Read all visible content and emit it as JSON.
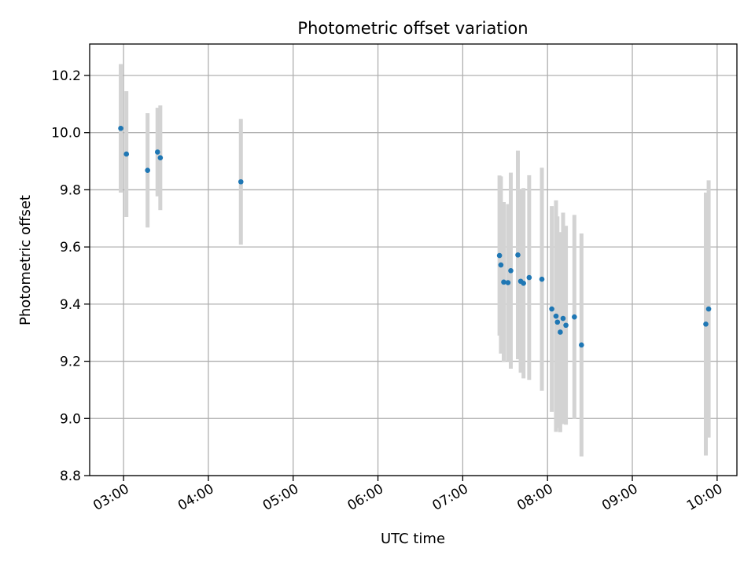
{
  "chart_data": {
    "type": "scatter",
    "title": "Photometric offset variation",
    "xlabel": "UTC time",
    "ylabel": "Photometric offset",
    "x_ticks": [
      "03:00",
      "04:00",
      "05:00",
      "06:00",
      "07:00",
      "08:00",
      "09:00",
      "10:00"
    ],
    "y_ticks": [
      "8.8",
      "9.0",
      "9.2",
      "9.4",
      "9.6",
      "9.8",
      "10.0",
      "10.2"
    ],
    "xlim": [
      "02:36",
      "10:14"
    ],
    "ylim": [
      8.8,
      10.31
    ],
    "grid": true,
    "point_color": "#1f77b4",
    "errorbar_color": "#d3d3d3",
    "points": [
      {
        "time": "02:58",
        "y": 10.015,
        "err": 0.225
      },
      {
        "time": "03:02",
        "y": 9.925,
        "err": 0.22
      },
      {
        "time": "03:17",
        "y": 9.868,
        "err": 0.2
      },
      {
        "time": "03:24",
        "y": 9.932,
        "err": 0.155
      },
      {
        "time": "03:26",
        "y": 9.912,
        "err": 0.183
      },
      {
        "time": "04:23",
        "y": 9.828,
        "err": 0.22
      },
      {
        "time": "07:26",
        "y": 9.57,
        "err": 0.28
      },
      {
        "time": "07:27",
        "y": 9.537,
        "err": 0.31
      },
      {
        "time": "07:29",
        "y": 9.477,
        "err": 0.28
      },
      {
        "time": "07:32",
        "y": 9.475,
        "err": 0.275
      },
      {
        "time": "07:34",
        "y": 9.517,
        "err": 0.343
      },
      {
        "time": "07:39",
        "y": 9.572,
        "err": 0.365
      },
      {
        "time": "07:41",
        "y": 9.48,
        "err": 0.32
      },
      {
        "time": "07:43",
        "y": 9.473,
        "err": 0.333
      },
      {
        "time": "07:47",
        "y": 9.493,
        "err": 0.358
      },
      {
        "time": "07:56",
        "y": 9.487,
        "err": 0.39
      },
      {
        "time": "08:03",
        "y": 9.383,
        "err": 0.36
      },
      {
        "time": "08:06",
        "y": 9.358,
        "err": 0.405
      },
      {
        "time": "08:07",
        "y": 9.337,
        "err": 0.37
      },
      {
        "time": "08:09",
        "y": 9.302,
        "err": 0.35
      },
      {
        "time": "08:11",
        "y": 9.35,
        "err": 0.37
      },
      {
        "time": "08:13",
        "y": 9.326,
        "err": 0.348
      },
      {
        "time": "08:19",
        "y": 9.355,
        "err": 0.357
      },
      {
        "time": "08:24",
        "y": 9.257,
        "err": 0.39
      },
      {
        "time": "09:52",
        "y": 9.33,
        "err": 0.46
      },
      {
        "time": "09:54",
        "y": 9.383,
        "err": 0.45
      }
    ]
  }
}
